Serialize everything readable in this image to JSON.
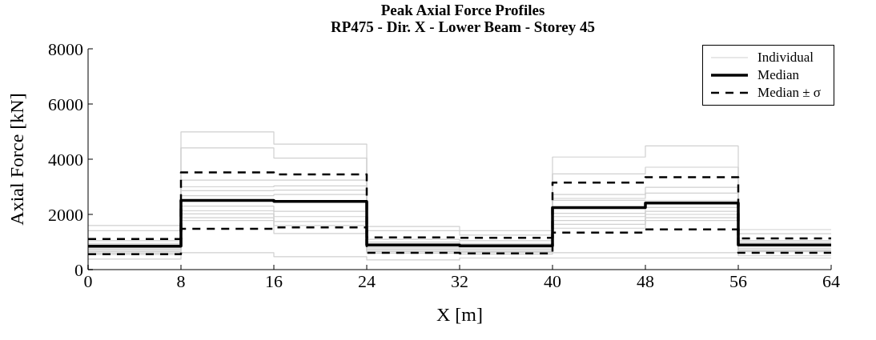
{
  "chart_data": {
    "type": "step",
    "title": "Peak Axial Force Profiles",
    "subtitle": "RP475 - Dir. X - Lower Beam - Storey 45",
    "xlabel": "X [m]",
    "ylabel": "Axial Force [kN]",
    "x": [
      0,
      8,
      16,
      24,
      32,
      40,
      48,
      56,
      64
    ],
    "xlim": [
      0,
      64
    ],
    "xticks": [
      0,
      8,
      16,
      24,
      32,
      40,
      48,
      56,
      64
    ],
    "ylim": [
      0,
      8000
    ],
    "yticks": [
      0,
      2000,
      4000,
      6000,
      8000
    ],
    "legend": "top right",
    "series": [
      {
        "name": "Individual",
        "color": "#d0d0d0",
        "line_style": "solid",
        "values": [
          1600,
          4990,
          4550,
          1560,
          1410,
          4080,
          4480,
          1450,
          1450
        ]
      },
      {
        "color": "#d0d0d0",
        "line_style": "solid",
        "values": [
          1410,
          4410,
          4040,
          1410,
          1250,
          3470,
          3710,
          1300,
          1300
        ]
      },
      {
        "color": "#d0d0d0",
        "line_style": "solid",
        "values": [
          1050,
          3240,
          3240,
          1100,
          1050,
          2720,
          2980,
          1050,
          1050
        ]
      },
      {
        "color": "#d0d0d0",
        "line_style": "solid",
        "values": [
          950,
          3000,
          3030,
          1000,
          950,
          2580,
          2770,
          980,
          980
        ]
      },
      {
        "color": "#d0d0d0",
        "line_style": "solid",
        "values": [
          900,
          2860,
          2880,
          950,
          900,
          2510,
          2500,
          920,
          920
        ]
      },
      {
        "color": "#d0d0d0",
        "line_style": "solid",
        "values": [
          800,
          2680,
          2720,
          850,
          800,
          2040,
          2250,
          850,
          850
        ]
      },
      {
        "color": "#d0d0d0",
        "line_style": "solid",
        "values": [
          750,
          2300,
          2110,
          800,
          750,
          1920,
          2110,
          780,
          780
        ]
      },
      {
        "color": "#d0d0d0",
        "line_style": "solid",
        "values": [
          700,
          2130,
          1920,
          750,
          700,
          1780,
          2000,
          720,
          720
        ]
      },
      {
        "color": "#d0d0d0",
        "line_style": "solid",
        "values": [
          650,
          2020,
          1740,
          700,
          650,
          1640,
          1880,
          680,
          680
        ]
      },
      {
        "color": "#d0d0d0",
        "line_style": "solid",
        "values": [
          600,
          1880,
          1600,
          650,
          620,
          1500,
          1780,
          650,
          650
        ]
      },
      {
        "color": "#d0d0d0",
        "line_style": "solid",
        "values": [
          550,
          1780,
          1310,
          600,
          560,
          610,
          610,
          500,
          500
        ]
      },
      {
        "color": "#d0d0d0",
        "line_style": "solid",
        "values": [
          380,
          610,
          470,
          350,
          420,
          420,
          420,
          420,
          420
        ]
      },
      {
        "name": "Median",
        "color": "#000000",
        "line_style": "solid",
        "values": [
          850,
          2510,
          2470,
          890,
          860,
          2250,
          2410,
          890,
          890
        ]
      },
      {
        "name": "Median ± σ",
        "color": "#000000",
        "line_style": "dashed",
        "values": [
          1110,
          3520,
          3450,
          1170,
          1150,
          3150,
          3350,
          1130,
          1130
        ]
      },
      {
        "color": "#000000",
        "line_style": "dashed",
        "values": [
          560,
          1480,
          1530,
          610,
          590,
          1340,
          1460,
          610,
          610
        ]
      }
    ]
  }
}
